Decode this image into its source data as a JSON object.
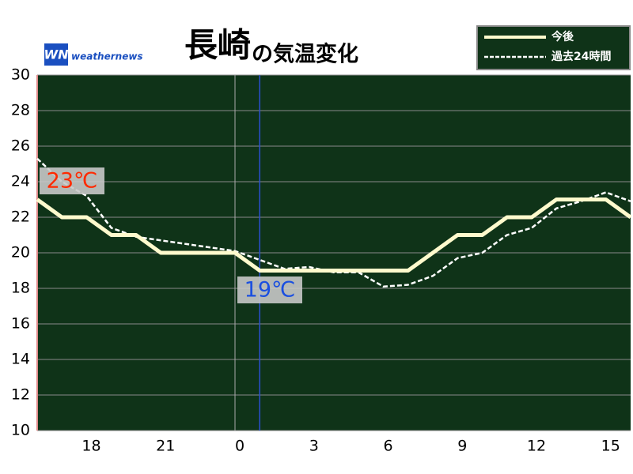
{
  "chart_data": {
    "type": "line",
    "title": "長崎",
    "subtitle": "の気温変化",
    "logo": {
      "mark": "WN",
      "text": "weathernews"
    },
    "categories": [
      null,
      null,
      "18",
      null,
      null,
      "21",
      null,
      null,
      "0",
      null,
      null,
      "3",
      null,
      null,
      "6",
      null,
      null,
      "9",
      null,
      null,
      "12",
      null,
      null,
      "15",
      null
    ],
    "ylim": [
      10,
      30
    ],
    "yticks": [
      10,
      12,
      14,
      16,
      18,
      20,
      22,
      24,
      26,
      28,
      30
    ],
    "grid": true,
    "legend": "top-right",
    "series": [
      {
        "name": "今後",
        "color": "#fffacd",
        "style": "solid",
        "values": [
          23,
          22,
          22,
          21,
          21,
          20,
          20,
          20,
          20,
          19,
          19,
          19,
          19,
          19,
          19,
          19,
          20,
          21,
          21,
          22,
          22,
          23,
          23,
          23,
          22
        ]
      },
      {
        "name": "過去24時間",
        "color": "#ffffff",
        "style": "dashed",
        "values": [
          25.3,
          24,
          23.2,
          21.4,
          20.9,
          20.7,
          20.5,
          20.3,
          20.1,
          19.6,
          19.1,
          19.2,
          18.9,
          18.9,
          18.1,
          18.2,
          18.7,
          19.7,
          20,
          21,
          21.4,
          22.5,
          22.9,
          23.4,
          22.9
        ]
      }
    ],
    "annotations": [
      {
        "text": "23℃",
        "color": "#ff2a00"
      },
      {
        "text": "19℃",
        "color": "#1a4fe0"
      }
    ]
  }
}
